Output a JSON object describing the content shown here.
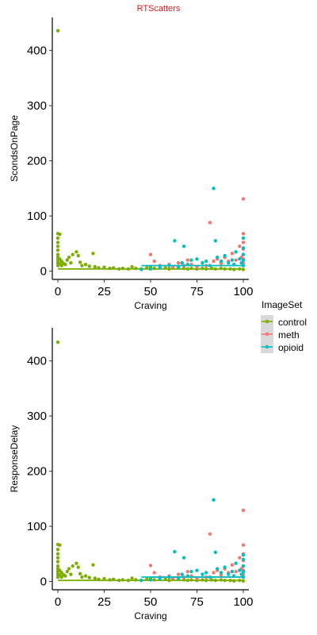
{
  "figure_title": "RTScatters",
  "colors": {
    "title": "#e31a1c",
    "control": "#7cae00",
    "meth": "#f8766d",
    "opioid": "#00bfc4"
  },
  "legend": {
    "title": "ImageSet",
    "placement": "right",
    "items": [
      {
        "label": "control",
        "color": "#7cae00"
      },
      {
        "label": "meth",
        "color": "#f8766d"
      },
      {
        "label": "opioid",
        "color": "#00bfc4"
      }
    ]
  },
  "chart_data": [
    {
      "type": "scatter",
      "title": "",
      "xlabel": "Craving",
      "ylabel": "ScondsOnPage",
      "xlim": [
        -3,
        103
      ],
      "ylim": [
        -15,
        460
      ],
      "xticks": [
        0,
        25,
        50,
        75,
        100
      ],
      "yticks": [
        0,
        100,
        200,
        300,
        400
      ],
      "grid": false,
      "series": [
        {
          "name": "control",
          "color": "#7cae00",
          "points": [
            [
              0,
              436
            ],
            [
              0,
              68
            ],
            [
              1,
              67
            ],
            [
              0,
              60
            ],
            [
              0,
              52
            ],
            [
              0,
              45
            ],
            [
              0,
              38
            ],
            [
              0,
              30
            ],
            [
              0,
              25
            ],
            [
              0,
              20
            ],
            [
              0,
              15
            ],
            [
              0,
              10
            ],
            [
              1,
              22
            ],
            [
              1,
              14
            ],
            [
              2,
              18
            ],
            [
              2,
              10
            ],
            [
              3,
              14
            ],
            [
              4,
              12
            ],
            [
              5,
              20
            ],
            [
              6,
              25
            ],
            [
              7,
              15
            ],
            [
              8,
              30
            ],
            [
              10,
              35
            ],
            [
              11,
              28
            ],
            [
              12,
              16
            ],
            [
              13,
              10
            ],
            [
              15,
              12
            ],
            [
              17,
              9
            ],
            [
              19,
              32
            ],
            [
              20,
              8
            ],
            [
              22,
              6
            ],
            [
              25,
              7
            ],
            [
              28,
              5
            ],
            [
              30,
              6
            ],
            [
              33,
              4
            ],
            [
              35,
              5
            ],
            [
              38,
              4
            ],
            [
              40,
              8
            ],
            [
              42,
              5
            ],
            [
              45,
              4
            ],
            [
              48,
              6
            ],
            [
              50,
              7
            ],
            [
              52,
              5
            ],
            [
              55,
              8
            ],
            [
              58,
              6
            ],
            [
              60,
              4
            ],
            [
              62,
              7
            ],
            [
              65,
              6
            ],
            [
              68,
              5
            ],
            [
              70,
              4
            ],
            [
              72,
              5
            ],
            [
              75,
              4
            ],
            [
              78,
              5
            ],
            [
              80,
              4
            ],
            [
              83,
              5
            ],
            [
              85,
              4
            ],
            [
              88,
              5
            ],
            [
              90,
              4
            ],
            [
              93,
              4
            ],
            [
              95,
              3
            ],
            [
              98,
              4
            ],
            [
              100,
              3
            ]
          ]
        },
        {
          "name": "meth",
          "color": "#f8766d",
          "points": [
            [
              50,
              30
            ],
            [
              52,
              18
            ],
            [
              55,
              10
            ],
            [
              60,
              12
            ],
            [
              62,
              8
            ],
            [
              65,
              15
            ],
            [
              68,
              10
            ],
            [
              70,
              20
            ],
            [
              72,
              12
            ],
            [
              75,
              8
            ],
            [
              78,
              15
            ],
            [
              80,
              10
            ],
            [
              82,
              88
            ],
            [
              84,
              18
            ],
            [
              86,
              22
            ],
            [
              88,
              14
            ],
            [
              90,
              25
            ],
            [
              92,
              18
            ],
            [
              94,
              32
            ],
            [
              95,
              12
            ],
            [
              96,
              20
            ],
            [
              98,
              45
            ],
            [
              99,
              25
            ],
            [
              100,
              131
            ],
            [
              100,
              68
            ],
            [
              100,
              52
            ],
            [
              100,
              40
            ],
            [
              100,
              30
            ],
            [
              100,
              22
            ],
            [
              100,
              15
            ]
          ]
        },
        {
          "name": "opioid",
          "color": "#00bfc4",
          "points": [
            [
              45,
              3
            ],
            [
              50,
              4
            ],
            [
              55,
              6
            ],
            [
              60,
              10
            ],
            [
              63,
              55
            ],
            [
              65,
              8
            ],
            [
              67,
              15
            ],
            [
              68,
              45
            ],
            [
              70,
              12
            ],
            [
              72,
              20
            ],
            [
              75,
              22
            ],
            [
              78,
              15
            ],
            [
              80,
              18
            ],
            [
              82,
              10
            ],
            [
              84,
              150
            ],
            [
              85,
              55
            ],
            [
              86,
              25
            ],
            [
              88,
              18
            ],
            [
              90,
              28
            ],
            [
              92,
              15
            ],
            [
              94,
              20
            ],
            [
              95,
              12
            ],
            [
              96,
              35
            ],
            [
              98,
              22
            ],
            [
              99,
              15
            ],
            [
              100,
              60
            ],
            [
              100,
              42
            ],
            [
              100,
              30
            ],
            [
              100,
              20
            ],
            [
              100,
              10
            ]
          ]
        }
      ]
    },
    {
      "type": "scatter",
      "title": "",
      "xlabel": "Craving",
      "ylabel": "ResponseDelay",
      "xlim": [
        -3,
        103
      ],
      "ylim": [
        -15,
        460
      ],
      "xticks": [
        0,
        25,
        50,
        75,
        100
      ],
      "yticks": [
        0,
        100,
        200,
        300,
        400
      ],
      "grid": false,
      "series": [
        {
          "name": "control",
          "color": "#7cae00",
          "points": [
            [
              0,
              434
            ],
            [
              0,
              67
            ],
            [
              1,
              66
            ],
            [
              0,
              58
            ],
            [
              0,
              50
            ],
            [
              0,
              43
            ],
            [
              0,
              36
            ],
            [
              0,
              28
            ],
            [
              0,
              23
            ],
            [
              0,
              18
            ],
            [
              0,
              13
            ],
            [
              0,
              8
            ],
            [
              1,
              20
            ],
            [
              1,
              12
            ],
            [
              2,
              16
            ],
            [
              2,
              8
            ],
            [
              3,
              12
            ],
            [
              4,
              10
            ],
            [
              5,
              18
            ],
            [
              6,
              23
            ],
            [
              7,
              13
            ],
            [
              8,
              28
            ],
            [
              10,
              33
            ],
            [
              11,
              26
            ],
            [
              12,
              14
            ],
            [
              13,
              8
            ],
            [
              15,
              10
            ],
            [
              17,
              7
            ],
            [
              19,
              30
            ],
            [
              20,
              6
            ],
            [
              22,
              4
            ],
            [
              25,
              5
            ],
            [
              28,
              3
            ],
            [
              30,
              4
            ],
            [
              33,
              2
            ],
            [
              35,
              3
            ],
            [
              38,
              2
            ],
            [
              40,
              6
            ],
            [
              42,
              3
            ],
            [
              45,
              2
            ],
            [
              48,
              4
            ],
            [
              50,
              5
            ],
            [
              52,
              3
            ],
            [
              55,
              6
            ],
            [
              58,
              4
            ],
            [
              60,
              2
            ],
            [
              62,
              5
            ],
            [
              65,
              4
            ],
            [
              68,
              3
            ],
            [
              70,
              2
            ],
            [
              72,
              3
            ],
            [
              75,
              2
            ],
            [
              78,
              3
            ],
            [
              80,
              2
            ],
            [
              83,
              3
            ],
            [
              85,
              2
            ],
            [
              88,
              3
            ],
            [
              90,
              2
            ],
            [
              93,
              2
            ],
            [
              95,
              1
            ],
            [
              98,
              2
            ],
            [
              100,
              1
            ]
          ]
        },
        {
          "name": "meth",
          "color": "#f8766d",
          "points": [
            [
              50,
              29
            ],
            [
              52,
              16
            ],
            [
              55,
              8
            ],
            [
              60,
              10
            ],
            [
              62,
              6
            ],
            [
              65,
              13
            ],
            [
              68,
              8
            ],
            [
              70,
              18
            ],
            [
              72,
              10
            ],
            [
              75,
              6
            ],
            [
              78,
              13
            ],
            [
              80,
              8
            ],
            [
              82,
              86
            ],
            [
              84,
              16
            ],
            [
              86,
              20
            ],
            [
              88,
              12
            ],
            [
              90,
              23
            ],
            [
              92,
              16
            ],
            [
              94,
              30
            ],
            [
              95,
              10
            ],
            [
              96,
              18
            ],
            [
              98,
              43
            ],
            [
              99,
              23
            ],
            [
              100,
              129
            ],
            [
              100,
              66
            ],
            [
              100,
              50
            ],
            [
              100,
              38
            ],
            [
              100,
              28
            ],
            [
              100,
              20
            ],
            [
              100,
              13
            ]
          ]
        },
        {
          "name": "opioid",
          "color": "#00bfc4",
          "points": [
            [
              45,
              2
            ],
            [
              50,
              3
            ],
            [
              55,
              5
            ],
            [
              60,
              8
            ],
            [
              63,
              54
            ],
            [
              65,
              6
            ],
            [
              67,
              13
            ],
            [
              68,
              43
            ],
            [
              70,
              10
            ],
            [
              72,
              18
            ],
            [
              75,
              20
            ],
            [
              78,
              13
            ],
            [
              80,
              16
            ],
            [
              82,
              8
            ],
            [
              84,
              148
            ],
            [
              85,
              53
            ],
            [
              86,
              23
            ],
            [
              88,
              16
            ],
            [
              90,
              26
            ],
            [
              92,
              13
            ],
            [
              94,
              18
            ],
            [
              95,
              10
            ],
            [
              96,
              33
            ],
            [
              98,
              20
            ],
            [
              99,
              13
            ],
            [
              100,
              48
            ],
            [
              100,
              40
            ],
            [
              100,
              28
            ],
            [
              100,
              18
            ],
            [
              100,
              8
            ]
          ]
        }
      ]
    }
  ]
}
